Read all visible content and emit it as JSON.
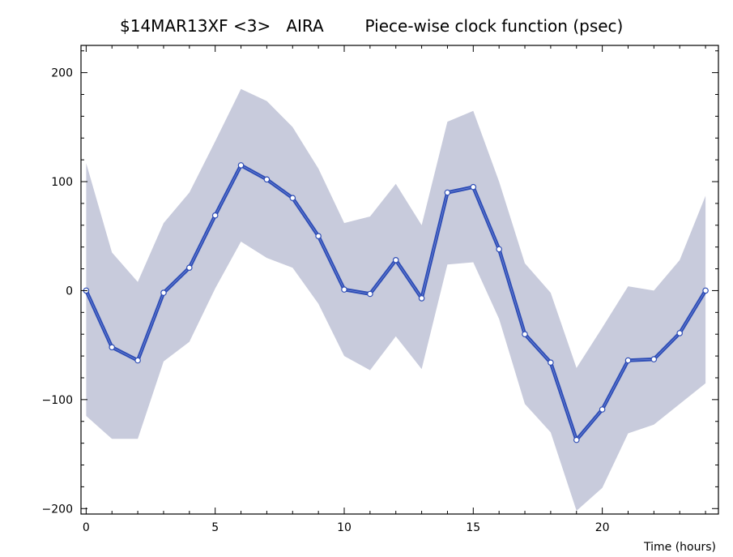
{
  "chart_data": {
    "type": "line",
    "title": "$14MAR13XF <3>   AIRA        Piece-wise clock function (psec)",
    "xlabel": "Time (hours)",
    "ylabel": "",
    "xlim": [
      -0.2,
      24.5
    ],
    "ylim": [
      -205,
      225
    ],
    "x_ticks": [
      0,
      5,
      10,
      15,
      20
    ],
    "y_ticks": [
      -200,
      -100,
      0,
      100,
      200
    ],
    "x_tick_labels": [
      "0",
      "5",
      "10",
      "15",
      "20"
    ],
    "y_tick_labels": [
      "−200",
      "−100",
      "0",
      "100",
      "200"
    ],
    "grid": false,
    "legend": "none",
    "colors": {
      "line": "#2e4db5",
      "band": "#c8cbdc",
      "marker_fill": "#ffffff"
    },
    "x": [
      0,
      1,
      2,
      3,
      4,
      5,
      6,
      7,
      8,
      9,
      10,
      11,
      12,
      13,
      14,
      15,
      16,
      17,
      18,
      19,
      20,
      21,
      22,
      23,
      24
    ],
    "series": [
      {
        "values": [
          0,
          -52,
          -64,
          -2,
          21,
          69,
          115,
          102,
          85,
          50,
          1,
          -3,
          28,
          -7,
          90,
          95,
          38,
          -40,
          -66,
          -137,
          -109,
          -64,
          -63,
          -39,
          0
        ]
      }
    ],
    "band": {
      "upper": [
        117,
        35,
        8,
        62,
        90,
        137,
        185,
        174,
        150,
        112,
        62,
        68,
        98,
        60,
        155,
        165,
        100,
        25,
        -2,
        -71,
        -34,
        4,
        0,
        28,
        87
      ],
      "lower": [
        -115,
        -136,
        -136,
        -65,
        -47,
        2,
        45,
        30,
        21,
        -12,
        -60,
        -73,
        -42,
        -72,
        24,
        26,
        -26,
        -104,
        -130,
        -202,
        -181,
        -131,
        -123,
        -104,
        -85
      ]
    }
  }
}
